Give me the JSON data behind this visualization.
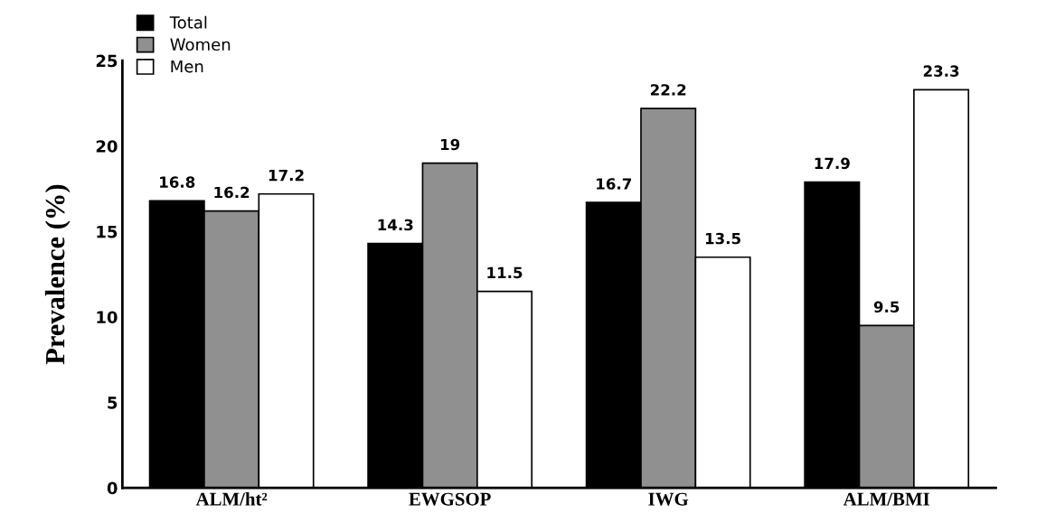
{
  "chart_data": {
    "type": "bar",
    "ylabel": "Prevalence (%)",
    "categories": [
      "ALM/ht²",
      "EWGSOP",
      "IWG",
      "ALM/BMI"
    ],
    "series": [
      {
        "name": "Total",
        "color": "#000000",
        "values": [
          16.8,
          14.3,
          16.7,
          17.9
        ]
      },
      {
        "name": "Women",
        "color": "#909090",
        "values": [
          16.2,
          19,
          22.2,
          9.5
        ]
      },
      {
        "name": "Men",
        "color": "#ffffff",
        "values": [
          17.2,
          11.5,
          13.5,
          23.3
        ]
      }
    ],
    "ylim": [
      0,
      25
    ],
    "yticks": [
      0,
      5,
      10,
      15,
      20,
      25
    ],
    "grid": false,
    "legend": "top left",
    "data_labels": true
  }
}
